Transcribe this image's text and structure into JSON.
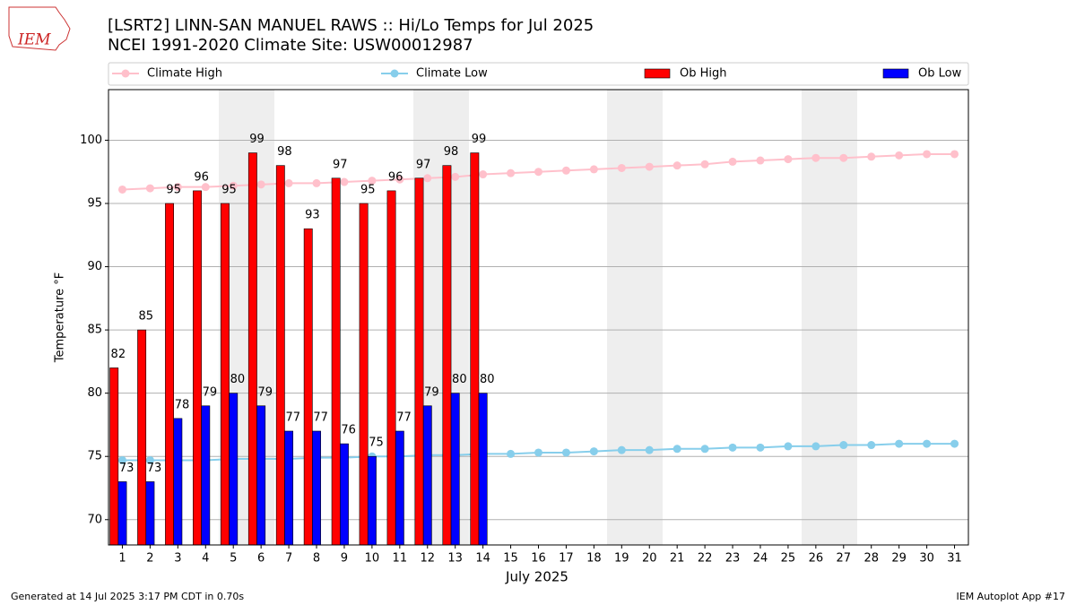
{
  "chart_data": {
    "type": "bar_line",
    "title": "[LSRT2] LINN-SAN MANUEL RAWS :: Hi/Lo Temps for Jul 2025",
    "subtitle": "NCEI 1991-2020 Climate Site: USW00012987",
    "x_label": "July 2025",
    "y_label": "Temperature °F",
    "logo": "IEM",
    "footer_left": "Generated at 14 Jul 2025 3:17 PM CDT in 0.70s",
    "footer_right": "IEM Autoplot App #17",
    "x": [
      1,
      2,
      3,
      4,
      5,
      6,
      7,
      8,
      9,
      10,
      11,
      12,
      13,
      14,
      15,
      16,
      17,
      18,
      19,
      20,
      21,
      22,
      23,
      24,
      25,
      26,
      27,
      28,
      29,
      30,
      31
    ],
    "xlim": [
      0.5,
      31.5
    ],
    "xticks": [
      1,
      2,
      3,
      4,
      5,
      6,
      7,
      8,
      9,
      10,
      11,
      12,
      13,
      14,
      15,
      16,
      17,
      18,
      19,
      20,
      21,
      22,
      23,
      24,
      25,
      26,
      27,
      28,
      29,
      30,
      31
    ],
    "ylim": [
      68,
      104
    ],
    "yticks": [
      70,
      75,
      80,
      85,
      90,
      95,
      100
    ],
    "grid": true,
    "series": [
      {
        "name": "Climate High",
        "kind": "line",
        "color": "#ffc0cb",
        "values": [
          96.1,
          96.2,
          96.3,
          96.3,
          96.4,
          96.5,
          96.6,
          96.6,
          96.7,
          96.8,
          96.9,
          97.0,
          97.1,
          97.3,
          97.4,
          97.5,
          97.6,
          97.7,
          97.8,
          97.9,
          98.0,
          98.1,
          98.3,
          98.4,
          98.5,
          98.6,
          98.6,
          98.7,
          98.8,
          98.9,
          98.9
        ]
      },
      {
        "name": "Climate Low",
        "kind": "line",
        "color": "#87ceeb",
        "values": [
          74.7,
          74.7,
          74.7,
          74.7,
          74.8,
          74.8,
          74.8,
          74.9,
          74.9,
          75.0,
          75.0,
          75.1,
          75.1,
          75.2,
          75.2,
          75.3,
          75.3,
          75.4,
          75.5,
          75.5,
          75.6,
          75.6,
          75.7,
          75.7,
          75.8,
          75.8,
          75.9,
          75.9,
          76.0,
          76.0,
          76.0
        ]
      },
      {
        "name": "Ob High",
        "kind": "bar",
        "color": "#ff0000",
        "values": [
          82,
          85,
          95,
          96,
          95,
          99,
          98,
          93,
          97,
          95,
          96,
          97,
          98,
          99,
          null,
          null,
          null,
          null,
          null,
          null,
          null,
          null,
          null,
          null,
          null,
          null,
          null,
          null,
          null,
          null,
          null
        ]
      },
      {
        "name": "Ob Low",
        "kind": "bar",
        "color": "#0000ff",
        "values": [
          73,
          73,
          78,
          79,
          80,
          79,
          77,
          77,
          76,
          75,
          77,
          79,
          80,
          80,
          null,
          null,
          null,
          null,
          null,
          null,
          null,
          null,
          null,
          null,
          null,
          null,
          null,
          null,
          null,
          null,
          null
        ]
      }
    ]
  }
}
